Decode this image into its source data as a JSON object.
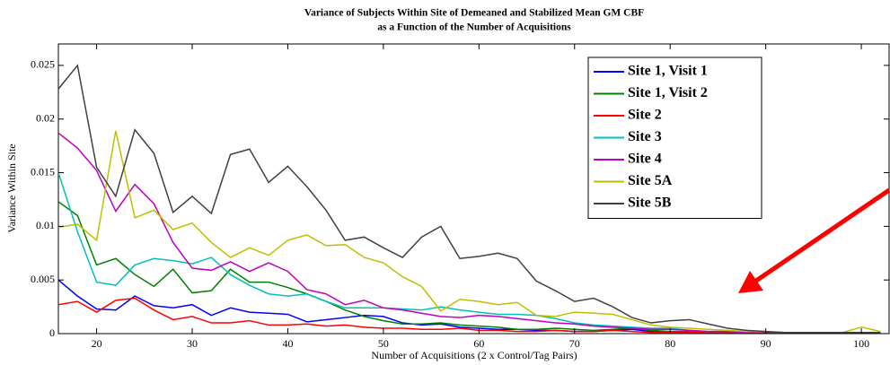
{
  "chart_data": {
    "type": "line",
    "title": "Variance of Subjects Within Site of Demeaned and Stabilized Mean GM CBF",
    "subtitle": "as a Function of the Number of Acquisitions",
    "x_label": "Number of Acquisitions (2 x Control/Tag Pairs)",
    "y_label": "Variance Within Site",
    "x": [
      16,
      18,
      20,
      22,
      24,
      26,
      28,
      30,
      32,
      34,
      36,
      38,
      40,
      42,
      44,
      46,
      48,
      50,
      52,
      54,
      56,
      58,
      60,
      62,
      64,
      66,
      68,
      70,
      72,
      74,
      76,
      78,
      80,
      82,
      84,
      86,
      88,
      90,
      92,
      94,
      96,
      98,
      100,
      102
    ],
    "series": [
      {
        "name": "Site 1, Visit 1",
        "color": "#0000ff",
        "values": [
          0.005,
          0.0035,
          0.0023,
          0.0022,
          0.0035,
          0.0026,
          0.0024,
          0.0027,
          0.0017,
          0.0024,
          0.002,
          0.0019,
          0.0018,
          0.0011,
          0.0013,
          0.0015,
          0.0017,
          0.0016,
          0.001,
          0.0008,
          0.0009,
          0.0006,
          0.0005,
          0.0004,
          0.0004,
          0.0003,
          0.0003,
          0.0002,
          0.0002,
          0.0003,
          0.0004,
          0.0002,
          0.0001,
          0.0001,
          0.0001,
          0.0001,
          0.0001,
          0.0001,
          0.0001,
          0.0001,
          0.0001,
          0.0001,
          0.0001,
          0.0001
        ]
      },
      {
        "name": "Site 1, Visit 2",
        "color": "#008000",
        "values": [
          0.0123,
          0.011,
          0.0064,
          0.007,
          0.0055,
          0.0044,
          0.006,
          0.0038,
          0.004,
          0.006,
          0.0048,
          0.0048,
          0.0043,
          0.0037,
          0.003,
          0.0022,
          0.0016,
          0.0012,
          0.0009,
          0.0009,
          0.001,
          0.0008,
          0.0007,
          0.0006,
          0.0004,
          0.0004,
          0.0005,
          0.0004,
          0.0003,
          0.0004,
          0.0005,
          0.0003,
          0.0002,
          0.0002,
          0.0001,
          0.0001,
          0.0001,
          0.0001,
          0.0001,
          0.0001,
          0.0001,
          0.0001,
          0.0001,
          0.0001
        ]
      },
      {
        "name": "Site 2",
        "color": "#ff0000",
        "values": [
          0.0027,
          0.003,
          0.002,
          0.0031,
          0.0033,
          0.0022,
          0.0013,
          0.0016,
          0.001,
          0.001,
          0.0012,
          0.0008,
          0.0008,
          0.0009,
          0.0007,
          0.0008,
          0.0006,
          0.0005,
          0.0005,
          0.0004,
          0.0004,
          0.0005,
          0.0003,
          0.0003,
          0.0002,
          0.0002,
          0.0003,
          0.0002,
          0.0002,
          0.0003,
          0.0002,
          0.0001,
          0.0001,
          0.0001,
          0.0001,
          0.0001,
          0.0001,
          0.0001,
          0.0001,
          0.0001,
          0.0001,
          0.0001,
          0.0001,
          0.0001
        ]
      },
      {
        "name": "Site 3",
        "color": "#00bfbf",
        "values": [
          0.015,
          0.0095,
          0.0048,
          0.0045,
          0.0064,
          0.007,
          0.0068,
          0.0065,
          0.0071,
          0.0055,
          0.0045,
          0.0037,
          0.0035,
          0.0037,
          0.003,
          0.0024,
          0.0024,
          0.0024,
          0.0023,
          0.0022,
          0.0025,
          0.0022,
          0.002,
          0.0018,
          0.0018,
          0.0017,
          0.0014,
          0.001,
          0.0008,
          0.0007,
          0.0006,
          0.0005,
          0.0005,
          0.0003,
          0.0002,
          0.0002,
          0.0001,
          0.0001,
          0.0001,
          0.0001,
          0.0001,
          0.0001,
          0.0001,
          0.0001
        ]
      },
      {
        "name": "Site 4",
        "color": "#bf00bf",
        "values": [
          0.0187,
          0.0173,
          0.0152,
          0.0114,
          0.0139,
          0.0121,
          0.0085,
          0.0061,
          0.0059,
          0.0067,
          0.0058,
          0.0066,
          0.0058,
          0.0041,
          0.0037,
          0.0027,
          0.0031,
          0.0024,
          0.0022,
          0.0019,
          0.0016,
          0.0015,
          0.0017,
          0.0016,
          0.0014,
          0.0012,
          0.001,
          0.0009,
          0.0007,
          0.0006,
          0.0005,
          0.0004,
          0.0004,
          0.0003,
          0.0002,
          0.0002,
          0.0001,
          0.0001,
          0.0001,
          0.0001,
          0.0001,
          0.0001,
          0.0001,
          0.0001
        ]
      },
      {
        "name": "Site 5A",
        "color": "#bfbf00",
        "values": [
          0.0099,
          0.0102,
          0.0087,
          0.0189,
          0.0108,
          0.0115,
          0.0097,
          0.0103,
          0.0085,
          0.0071,
          0.008,
          0.0073,
          0.0087,
          0.0092,
          0.0082,
          0.0083,
          0.0071,
          0.0066,
          0.0053,
          0.0044,
          0.0021,
          0.0032,
          0.003,
          0.0027,
          0.0029,
          0.0017,
          0.0016,
          0.002,
          0.0019,
          0.0018,
          0.0013,
          0.0008,
          0.0006,
          0.0005,
          0.0004,
          0.0003,
          0.0002,
          0.0002,
          0.0001,
          0.0001,
          0.0001,
          0.0001,
          0.0006,
          0.0002
        ]
      },
      {
        "name": "Site 5B",
        "color": "#404040",
        "values": [
          0.0228,
          0.025,
          0.0155,
          0.0128,
          0.019,
          0.0168,
          0.0113,
          0.0128,
          0.0112,
          0.0167,
          0.0172,
          0.0141,
          0.0156,
          0.0137,
          0.0115,
          0.0087,
          0.009,
          0.008,
          0.0071,
          0.009,
          0.01,
          0.007,
          0.0072,
          0.0075,
          0.007,
          0.0049,
          0.004,
          0.003,
          0.0033,
          0.0025,
          0.0015,
          0.001,
          0.0012,
          0.0013,
          0.0009,
          0.0005,
          0.0003,
          0.0002,
          0.0001,
          0.0001,
          0.0001,
          0.0001,
          0.0001,
          0.0001
        ]
      }
    ],
    "xlim": [
      16,
      103
    ],
    "ylim": [
      0,
      0.027
    ],
    "xticks": [
      20,
      30,
      40,
      50,
      60,
      70,
      80,
      90,
      100
    ],
    "yticks": [
      0,
      0.005,
      0.01,
      0.015,
      0.02,
      0.025
    ],
    "legend": "upper right"
  }
}
